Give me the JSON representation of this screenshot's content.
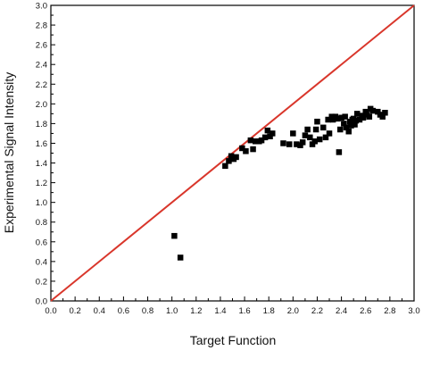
{
  "chart_data": {
    "type": "scatter",
    "xlabel": "Target Function",
    "ylabel": "Experimental Signal Intensity",
    "xlim": [
      0.0,
      3.0
    ],
    "ylim": [
      0.0,
      3.0
    ],
    "x_ticks": [
      "0.0",
      "0.2",
      "0.4",
      "0.6",
      "0.8",
      "1.0",
      "1.2",
      "1.4",
      "1.6",
      "1.8",
      "2.0",
      "2.2",
      "2.4",
      "2.6",
      "2.8",
      "3.0"
    ],
    "y_ticks": [
      "0.0",
      "0.2",
      "0.4",
      "0.6",
      "0.8",
      "1.0",
      "1.2",
      "1.4",
      "1.6",
      "1.8",
      "2.0",
      "2.2",
      "2.4",
      "2.6",
      "2.8",
      "3.0"
    ],
    "reference_line": {
      "x": [
        0.0,
        3.0
      ],
      "y": [
        0.0,
        3.0
      ],
      "color": "#d9362b"
    },
    "marker_color": "#000000",
    "series": [
      {
        "points": [
          [
            1.02,
            0.66
          ],
          [
            1.07,
            0.44
          ],
          [
            1.44,
            1.37
          ],
          [
            1.47,
            1.42
          ],
          [
            1.49,
            1.47
          ],
          [
            1.51,
            1.44
          ],
          [
            1.53,
            1.46
          ],
          [
            1.58,
            1.55
          ],
          [
            1.61,
            1.52
          ],
          [
            1.65,
            1.63
          ],
          [
            1.67,
            1.54
          ],
          [
            1.69,
            1.62
          ],
          [
            1.72,
            1.62
          ],
          [
            1.74,
            1.63
          ],
          [
            1.77,
            1.66
          ],
          [
            1.79,
            1.73
          ],
          [
            1.81,
            1.67
          ],
          [
            1.83,
            1.7
          ],
          [
            1.92,
            1.6
          ],
          [
            1.97,
            1.59
          ],
          [
            2.0,
            1.7
          ],
          [
            2.03,
            1.59
          ],
          [
            2.06,
            1.58
          ],
          [
            2.08,
            1.61
          ],
          [
            2.1,
            1.68
          ],
          [
            2.12,
            1.74
          ],
          [
            2.14,
            1.66
          ],
          [
            2.16,
            1.59
          ],
          [
            2.18,
            1.62
          ],
          [
            2.19,
            1.74
          ],
          [
            2.2,
            1.82
          ],
          [
            2.22,
            1.64
          ],
          [
            2.25,
            1.76
          ],
          [
            2.27,
            1.66
          ],
          [
            2.29,
            1.84
          ],
          [
            2.3,
            1.7
          ],
          [
            2.32,
            1.87
          ],
          [
            2.33,
            1.84
          ],
          [
            2.35,
            1.87
          ],
          [
            2.37,
            1.85
          ],
          [
            2.38,
            1.51
          ],
          [
            2.39,
            1.74
          ],
          [
            2.4,
            1.86
          ],
          [
            2.42,
            1.8
          ],
          [
            2.43,
            1.87
          ],
          [
            2.44,
            1.76
          ],
          [
            2.46,
            1.72
          ],
          [
            2.47,
            1.82
          ],
          [
            2.48,
            1.78
          ],
          [
            2.49,
            1.84
          ],
          [
            2.5,
            1.85
          ],
          [
            2.51,
            1.79
          ],
          [
            2.52,
            1.83
          ],
          [
            2.53,
            1.9
          ],
          [
            2.55,
            1.84
          ],
          [
            2.57,
            1.88
          ],
          [
            2.58,
            1.86
          ],
          [
            2.6,
            1.92
          ],
          [
            2.61,
            1.89
          ],
          [
            2.63,
            1.87
          ],
          [
            2.64,
            1.95
          ],
          [
            2.66,
            1.93
          ],
          [
            2.7,
            1.92
          ],
          [
            2.72,
            1.89
          ],
          [
            2.74,
            1.87
          ],
          [
            2.76,
            1.91
          ]
        ]
      }
    ]
  }
}
